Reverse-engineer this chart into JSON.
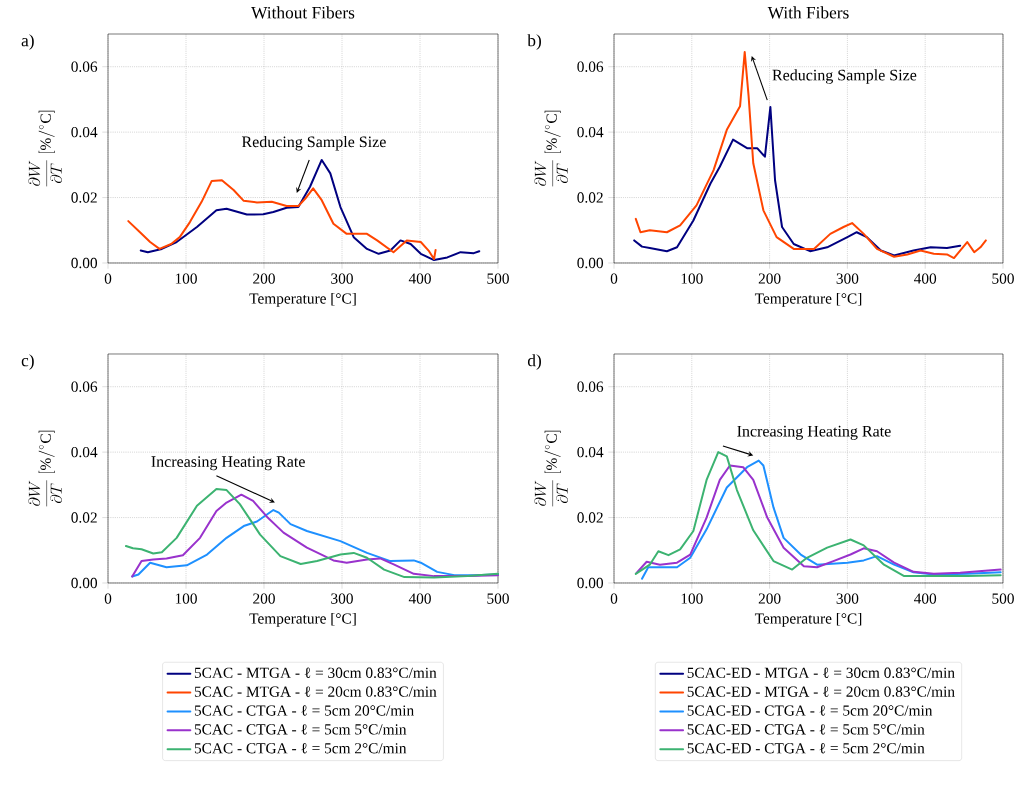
{
  "chart_data": [
    {
      "type": "line",
      "title": "Without Fibers",
      "xlabel": "Temperature [°C]",
      "ylabel": "\\frac{\\partial W}{\\partial T}\\ [\\%/^{\\circ}\\mathrm{C}]",
      "xlim": [
        0,
        500
      ],
      "xticks": [
        0,
        100,
        200,
        300,
        400,
        500
      ],
      "ylim": [
        0,
        0.07
      ],
      "yticks": [
        {
          "value": 0,
          "label": "0.00"
        },
        {
          "value": 0.02,
          "label": "0.02"
        },
        {
          "value": 0.04,
          "label": "0.04"
        },
        {
          "value": 0.06,
          "label": "0.06"
        }
      ],
      "grid": true,
      "line_style": "solid",
      "legend": "bottom",
      "annotations": [
        "a)",
        "Reducing Sample Size"
      ],
      "series": [
        {
          "name": "5CAC - MTGA - ℓ = 30cm 0.83°C/min",
          "color": "#000080",
          "x": [
            42,
            51,
            69,
            88,
            114,
            139,
            152,
            178,
            199,
            212,
            229,
            244,
            259,
            274,
            285,
            298,
            315,
            332,
            347,
            362,
            375,
            388,
            401,
            418,
            435,
            452,
            469,
            476
          ],
          "values": [
            0.0038,
            0.0033,
            0.0043,
            0.0064,
            0.011,
            0.0161,
            0.0166,
            0.0148,
            0.0149,
            0.0156,
            0.0169,
            0.0171,
            0.0233,
            0.0315,
            0.0274,
            0.0171,
            0.0079,
            0.0043,
            0.0028,
            0.0038,
            0.0069,
            0.0058,
            0.0028,
            0.0009,
            0.0017,
            0.0033,
            0.003,
            0.0036
          ]
        },
        {
          "name": "5CAC - MTGA - ℓ = 20cm 0.83°C/min",
          "color": "#ff4500",
          "x": [
            26,
            41,
            54,
            66,
            81,
            92,
            105,
            120,
            133,
            146,
            161,
            174,
            191,
            210,
            229,
            244,
            253,
            263,
            274,
            289,
            306,
            332,
            345,
            366,
            383,
            401,
            411,
            418,
            420
          ],
          "values": [
            0.0128,
            0.0094,
            0.0064,
            0.0043,
            0.0058,
            0.0079,
            0.0125,
            0.0187,
            0.0251,
            0.0253,
            0.0223,
            0.019,
            0.0185,
            0.0187,
            0.0174,
            0.0174,
            0.0197,
            0.0228,
            0.0192,
            0.012,
            0.0089,
            0.0089,
            0.0069,
            0.0033,
            0.0069,
            0.0064,
            0.0038,
            0.0012,
            0.004
          ]
        }
      ]
    },
    {
      "type": "line",
      "title": "With Fibers",
      "xlabel": "Temperature [°C]",
      "ylabel": "\\frac{\\partial W}{\\partial T}\\ [\\%/^{\\circ}\\mathrm{C}]",
      "xlim": [
        0,
        500
      ],
      "xticks": [
        0,
        100,
        200,
        300,
        400,
        500
      ],
      "ylim": [
        0,
        0.07
      ],
      "yticks": [
        {
          "value": 0,
          "label": "0.00"
        },
        {
          "value": 0.02,
          "label": "0.02"
        },
        {
          "value": 0.04,
          "label": "0.04"
        },
        {
          "value": 0.06,
          "label": "0.06"
        }
      ],
      "grid": true,
      "line_style": "solid",
      "legend": "bottom",
      "annotations": [
        "b)",
        "Reducing Sample Size"
      ],
      "series": [
        {
          "name": "5CAC-ED - MTGA - ℓ = 30cm 0.83°C/min",
          "color": "#000080",
          "x": [
            26,
            36,
            46,
            68,
            81,
            102,
            124,
            136,
            153,
            171,
            184,
            194,
            201,
            207,
            216,
            231,
            252,
            274,
            300,
            312,
            325,
            343,
            360,
            385,
            407,
            428,
            445
          ],
          "values": [
            0.0069,
            0.005,
            0.0046,
            0.0036,
            0.0048,
            0.013,
            0.0243,
            0.0294,
            0.0377,
            0.0351,
            0.0351,
            0.0325,
            0.0477,
            0.0253,
            0.011,
            0.0058,
            0.0036,
            0.0048,
            0.0079,
            0.0094,
            0.0079,
            0.0038,
            0.0023,
            0.0038,
            0.0048,
            0.0046,
            0.0053
          ]
        },
        {
          "name": "5CAC-ED - MTGA - ℓ = 20cm 0.83°C/min",
          "color": "#ff4500",
          "x": [
            28,
            34,
            46,
            68,
            85,
            106,
            128,
            145,
            162,
            168,
            173,
            179,
            192,
            209,
            231,
            257,
            278,
            295,
            306,
            321,
            338,
            360,
            377,
            394,
            411,
            428,
            437,
            454,
            463,
            471,
            478
          ],
          "values": [
            0.0135,
            0.0094,
            0.01,
            0.0094,
            0.0115,
            0.0176,
            0.0284,
            0.0407,
            0.0479,
            0.0645,
            0.051,
            0.0305,
            0.0161,
            0.0079,
            0.0043,
            0.0043,
            0.0089,
            0.011,
            0.0122,
            0.0089,
            0.0043,
            0.0019,
            0.0026,
            0.0038,
            0.0028,
            0.0026,
            0.0015,
            0.0064,
            0.0033,
            0.0048,
            0.0069
          ]
        }
      ]
    },
    {
      "type": "line",
      "xlabel": "Temperature [°C]",
      "ylabel": "\\frac{\\partial W}{\\partial T}\\ [\\%/^{\\circ}\\mathrm{C}]",
      "xlim": [
        0,
        500
      ],
      "xticks": [
        0,
        100,
        200,
        300,
        400,
        500
      ],
      "ylim": [
        0,
        0.07
      ],
      "yticks": [
        {
          "value": 0,
          "label": "0.00"
        },
        {
          "value": 0.02,
          "label": "0.02"
        },
        {
          "value": 0.04,
          "label": "0.04"
        },
        {
          "value": 0.06,
          "label": "0.06"
        }
      ],
      "grid": true,
      "line_style": "solid",
      "legend": "bottom",
      "annotations": [
        "c)",
        "Increasing Heating Rate"
      ],
      "series": [
        {
          "name": "5CAC - CTGA - ℓ = 5cm 20°C/min",
          "color": "#1e90ff",
          "x": [
            31,
            39,
            54,
            75,
            101,
            127,
            152,
            174,
            191,
            212,
            219,
            234,
            255,
            298,
            332,
            362,
            392,
            401,
            422,
            444,
            469,
            500
          ],
          "values": [
            0.002,
            0.0026,
            0.0062,
            0.0048,
            0.0054,
            0.0087,
            0.0138,
            0.0174,
            0.0188,
            0.0223,
            0.0215,
            0.018,
            0.0159,
            0.0128,
            0.0092,
            0.0067,
            0.0069,
            0.0062,
            0.0034,
            0.0024,
            0.0024,
            0.0026
          ]
        },
        {
          "name": "5CAC - CTGA - ℓ = 5cm 5°C/min",
          "color": "#9932cc",
          "x": [
            31,
            43,
            58,
            75,
            96,
            118,
            139,
            152,
            171,
            186,
            204,
            225,
            255,
            289,
            306,
            332,
            349,
            367,
            392,
            418,
            461,
            500
          ],
          "values": [
            0.002,
            0.0067,
            0.0072,
            0.0075,
            0.0085,
            0.0138,
            0.022,
            0.0246,
            0.027,
            0.0251,
            0.0202,
            0.0154,
            0.0108,
            0.0069,
            0.0062,
            0.0072,
            0.0075,
            0.0056,
            0.0028,
            0.0021,
            0.0021,
            0.0024
          ]
        },
        {
          "name": "5CAC - CTGA - ℓ = 5cm 2°C/min",
          "color": "#3cb371",
          "x": [
            23,
            32,
            43,
            58,
            69,
            88,
            114,
            139,
            152,
            169,
            195,
            221,
            247,
            268,
            298,
            315,
            332,
            354,
            380,
            418,
            461,
            500
          ],
          "values": [
            0.0113,
            0.0106,
            0.0103,
            0.009,
            0.0094,
            0.0138,
            0.0236,
            0.0287,
            0.0284,
            0.0241,
            0.0148,
            0.0082,
            0.0058,
            0.0067,
            0.0087,
            0.0092,
            0.0077,
            0.0041,
            0.0018,
            0.0017,
            0.0021,
            0.0028
          ]
        }
      ]
    },
    {
      "type": "line",
      "xlabel": "Temperature [°C]",
      "ylabel": "\\frac{\\partial W}{\\partial T}\\ [\\%/^{\\circ}\\mathrm{C}]",
      "xlim": [
        0,
        500
      ],
      "xticks": [
        0,
        100,
        200,
        300,
        400,
        500
      ],
      "ylim": [
        0,
        0.07
      ],
      "yticks": [
        {
          "value": 0,
          "label": "0.00"
        },
        {
          "value": 0.02,
          "label": "0.02"
        },
        {
          "value": 0.04,
          "label": "0.04"
        },
        {
          "value": 0.06,
          "label": "0.06"
        }
      ],
      "grid": true,
      "line_style": "solid",
      "legend": "bottom",
      "annotations": [
        "d)",
        "Increasing Heating Rate"
      ],
      "series": [
        {
          "name": "5CAC-ED - CTGA - ℓ = 5cm 20°C/min",
          "color": "#1e90ff",
          "x": [
            36,
            44,
            57,
            81,
            98,
            119,
            145,
            171,
            186,
            192,
            205,
            218,
            240,
            261,
            300,
            321,
            338,
            360,
            385,
            411,
            454,
            497
          ],
          "values": [
            0.0013,
            0.0048,
            0.0048,
            0.0048,
            0.0077,
            0.0164,
            0.0292,
            0.0354,
            0.0374,
            0.0359,
            0.0231,
            0.0138,
            0.0087,
            0.0056,
            0.0062,
            0.0069,
            0.0082,
            0.0056,
            0.0033,
            0.0026,
            0.0028,
            0.0033
          ]
        },
        {
          "name": "5CAC-ED - CTGA - ℓ = 5cm 5°C/min",
          "color": "#9932cc",
          "x": [
            29,
            42,
            59,
            81,
            98,
            119,
            136,
            149,
            166,
            179,
            197,
            218,
            244,
            261,
            282,
            304,
            321,
            338,
            360,
            385,
            411,
            445,
            497
          ],
          "values": [
            0.0031,
            0.0065,
            0.0056,
            0.0062,
            0.0087,
            0.02,
            0.0315,
            0.0359,
            0.0354,
            0.0315,
            0.02,
            0.0108,
            0.0051,
            0.0048,
            0.0067,
            0.0087,
            0.0106,
            0.0097,
            0.0062,
            0.0034,
            0.0028,
            0.0031,
            0.0041
          ]
        },
        {
          "name": "5CAC-ED - CTGA - ℓ = 5cm 2°C/min",
          "color": "#3cb371",
          "x": [
            28,
            46,
            57,
            70,
            85,
            102,
            119,
            134,
            145,
            158,
            179,
            205,
            229,
            248,
            274,
            304,
            321,
            347,
            373,
            411,
            454,
            497
          ],
          "values": [
            0.0028,
            0.0056,
            0.0097,
            0.0085,
            0.0103,
            0.0159,
            0.0315,
            0.04,
            0.0387,
            0.0284,
            0.0161,
            0.0067,
            0.0041,
            0.0077,
            0.0108,
            0.0133,
            0.0115,
            0.0056,
            0.0021,
            0.0021,
            0.0021,
            0.0024
          ]
        }
      ]
    }
  ]
}
